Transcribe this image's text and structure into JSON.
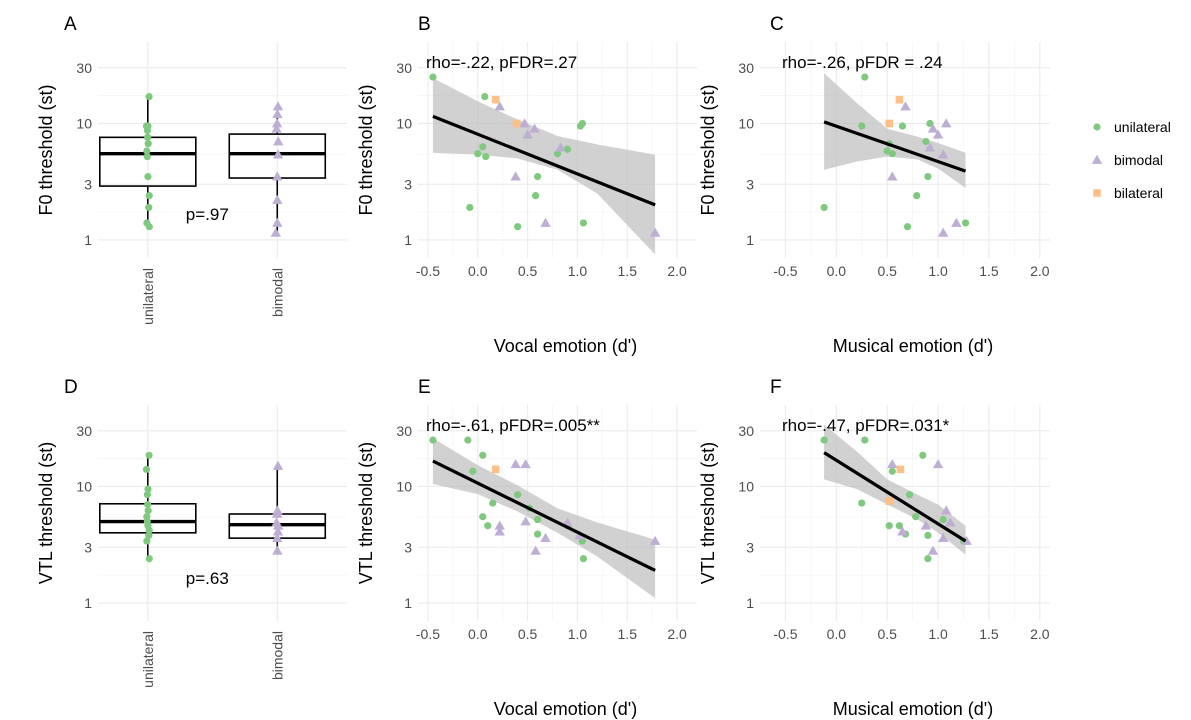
{
  "colors": {
    "unilateral": "#7fc97f",
    "bimodal": "#beaed4",
    "bilateral": "#fdc086",
    "ribbon": "#bdbdbd",
    "line": "#000000"
  },
  "legend": {
    "items": [
      {
        "label": "unilateral",
        "shape": "circle",
        "color": "#7fc97f"
      },
      {
        "label": "bimodal",
        "shape": "triangle",
        "color": "#beaed4"
      },
      {
        "label": "bilateral",
        "shape": "square",
        "color": "#fdc086"
      }
    ]
  },
  "chart_data": [
    {
      "id": "A",
      "letter": "A",
      "type": "box",
      "ylabel": "F0 threshold (st)",
      "y_scale": "log",
      "ylim": [
        0.7,
        50
      ],
      "yticks": [
        1,
        3,
        10,
        30
      ],
      "categories": [
        "unilateral",
        "bimodal"
      ],
      "boxes": [
        {
          "category": "unilateral",
          "min": 1.3,
          "q1": 2.9,
          "median": 5.5,
          "q3": 7.6,
          "max": 17
        },
        {
          "category": "bimodal",
          "min": 1.15,
          "q1": 3.4,
          "median": 5.5,
          "q3": 8.1,
          "max": 14
        }
      ],
      "points": {
        "unilateral": [
          17,
          9.5,
          9.5,
          8.7,
          7.6,
          6.7,
          5.8,
          5.2,
          3.5,
          2.4,
          1.9,
          1.4,
          1.3
        ],
        "bimodal": [
          14,
          12,
          10,
          9,
          7,
          5.4,
          3.5,
          2.2,
          1.4,
          1.15
        ]
      },
      "annotation": "p=.97"
    },
    {
      "id": "B",
      "letter": "B",
      "type": "scatter",
      "ylabel": "F0 threshold (st)",
      "xlabel": "Vocal emotion (d')",
      "y_scale": "log",
      "ylim": [
        0.7,
        50
      ],
      "yticks": [
        1,
        3,
        10,
        30
      ],
      "xlim": [
        -0.6,
        2.2
      ],
      "xticks": [
        -0.5,
        0.0,
        0.5,
        1.0,
        1.5,
        2.0
      ],
      "annotation": "rho=-.22, pFDR=.27",
      "series": [
        {
          "name": "unilateral",
          "points": [
            [
              -0.45,
              25
            ],
            [
              -0.08,
              1.9
            ],
            [
              0.0,
              5.5
            ],
            [
              0.05,
              6.3
            ],
            [
              0.07,
              17
            ],
            [
              0.08,
              5.2
            ],
            [
              0.4,
              1.3
            ],
            [
              0.58,
              2.4
            ],
            [
              0.6,
              3.5
            ],
            [
              0.8,
              5.5
            ],
            [
              0.9,
              6.0
            ],
            [
              1.03,
              9.5
            ],
            [
              1.05,
              10
            ],
            [
              1.06,
              1.4
            ]
          ]
        },
        {
          "name": "bimodal",
          "points": [
            [
              0.22,
              14
            ],
            [
              0.38,
              3.5
            ],
            [
              0.47,
              10
            ],
            [
              0.5,
              8
            ],
            [
              0.57,
              9
            ],
            [
              0.68,
              1.4
            ],
            [
              0.83,
              6.2
            ],
            [
              1.78,
              1.15
            ]
          ]
        },
        {
          "name": "bilateral",
          "points": [
            [
              0.18,
              16
            ],
            [
              0.39,
              10
            ]
          ]
        }
      ],
      "fit": {
        "x": [
          -0.45,
          1.78
        ],
        "y": [
          11.5,
          2.0
        ]
      },
      "ribbon": {
        "x": [
          -0.45,
          0.0,
          0.4,
          0.8,
          1.2,
          1.78
        ],
        "lower": [
          5.6,
          5.4,
          5.0,
          4.0,
          2.5,
          0.75
        ],
        "upper": [
          24.5,
          15.5,
          10.8,
          7.8,
          6.6,
          5.4
        ]
      }
    },
    {
      "id": "C",
      "letter": "C",
      "type": "scatter",
      "ylabel": "F0 threshold (st)",
      "xlabel": "Musical emotion (d')",
      "y_scale": "log",
      "ylim": [
        0.7,
        50
      ],
      "yticks": [
        1,
        3,
        10,
        30
      ],
      "xlim": [
        -0.75,
        2.1
      ],
      "xticks": [
        -0.5,
        0.0,
        0.5,
        1.0,
        1.5,
        2.0
      ],
      "annotation": "rho=-.26, pFDR = .24",
      "series": [
        {
          "name": "unilateral",
          "points": [
            [
              -0.12,
              1.9
            ],
            [
              0.25,
              9.5
            ],
            [
              0.28,
              25
            ],
            [
              0.5,
              5.8
            ],
            [
              0.52,
              6.7
            ],
            [
              0.55,
              5.5
            ],
            [
              0.65,
              9.5
            ],
            [
              0.7,
              1.3
            ],
            [
              0.79,
              2.4
            ],
            [
              0.88,
              7.0
            ],
            [
              0.9,
              3.5
            ],
            [
              0.92,
              10
            ],
            [
              1.27,
              1.4
            ]
          ]
        },
        {
          "name": "bimodal",
          "points": [
            [
              0.55,
              3.5
            ],
            [
              0.68,
              14
            ],
            [
              0.92,
              6.2
            ],
            [
              0.95,
              9
            ],
            [
              1.0,
              8
            ],
            [
              1.05,
              5.4
            ],
            [
              1.08,
              10
            ],
            [
              1.18,
              1.4
            ],
            [
              1.05,
              1.15
            ]
          ]
        },
        {
          "name": "bilateral",
          "points": [
            [
              0.52,
              10
            ],
            [
              0.62,
              16
            ]
          ]
        }
      ],
      "fit": {
        "x": [
          -0.12,
          1.27
        ],
        "y": [
          10.3,
          3.9
        ]
      },
      "ribbon": {
        "x": [
          -0.12,
          0.2,
          0.5,
          0.8,
          1.0,
          1.27
        ],
        "lower": [
          4.0,
          4.7,
          5.2,
          4.9,
          4.1,
          2.8
        ],
        "upper": [
          27.0,
          15.0,
          9.0,
          7.7,
          6.8,
          5.6
        ]
      }
    },
    {
      "id": "D",
      "letter": "D",
      "type": "box",
      "ylabel": "VTL threshold (st)",
      "y_scale": "log",
      "ylim": [
        0.7,
        50
      ],
      "yticks": [
        1,
        3,
        10,
        30
      ],
      "categories": [
        "unilateral",
        "bimodal"
      ],
      "boxes": [
        {
          "category": "unilateral",
          "min": 2.4,
          "q1": 4.0,
          "median": 5.0,
          "q3": 7.1,
          "max": 18.5
        },
        {
          "category": "bimodal",
          "min": 2.8,
          "q1": 3.6,
          "median": 4.7,
          "q3": 5.8,
          "max": 15
        }
      ],
      "points": {
        "unilateral": [
          18.5,
          14,
          9.5,
          8.5,
          7,
          6.2,
          5.5,
          5.0,
          4.6,
          4.2,
          3.8,
          3.4,
          2.4
        ],
        "bimodal": [
          15,
          6.2,
          5.8,
          4.9,
          4.6,
          4.1,
          3.6,
          2.8
        ]
      },
      "annotation": "p=.63"
    },
    {
      "id": "E",
      "letter": "E",
      "type": "scatter",
      "ylabel": "VTL threshold (st)",
      "xlabel": "Vocal emotion (d')",
      "y_scale": "log",
      "ylim": [
        0.7,
        50
      ],
      "yticks": [
        1,
        3,
        10,
        30
      ],
      "xlim": [
        -0.6,
        2.2
      ],
      "xticks": [
        -0.5,
        0.0,
        0.5,
        1.0,
        1.5,
        2.0
      ],
      "annotation": "rho=-.61, pFDR=.005**",
      "series": [
        {
          "name": "unilateral",
          "points": [
            [
              -0.45,
              25
            ],
            [
              -0.1,
              25
            ],
            [
              -0.05,
              13.5
            ],
            [
              0.05,
              18.5
            ],
            [
              0.05,
              5.5
            ],
            [
              0.1,
              4.6
            ],
            [
              0.15,
              7.2
            ],
            [
              0.4,
              8.5
            ],
            [
              0.52,
              6.5
            ],
            [
              0.6,
              5.2
            ],
            [
              0.6,
              3.9
            ],
            [
              0.9,
              4.6
            ],
            [
              1.05,
              3.4
            ],
            [
              1.06,
              2.4
            ]
          ]
        },
        {
          "name": "bimodal",
          "points": [
            [
              0.22,
              4.1
            ],
            [
              0.22,
              4.6
            ],
            [
              0.38,
              15.5
            ],
            [
              0.48,
              15.5
            ],
            [
              0.48,
              5.0
            ],
            [
              0.58,
              2.8
            ],
            [
              0.68,
              3.6
            ],
            [
              0.9,
              4.9
            ],
            [
              1.02,
              3.8
            ],
            [
              1.78,
              3.4
            ]
          ]
        },
        {
          "name": "bilateral",
          "points": [
            [
              0.18,
              14
            ]
          ]
        }
      ],
      "fit": {
        "x": [
          -0.45,
          1.78
        ],
        "y": [
          16.5,
          1.9
        ]
      },
      "ribbon": {
        "x": [
          -0.45,
          0.0,
          0.4,
          0.8,
          1.2,
          1.78
        ],
        "lower": [
          10.5,
          8.6,
          6.1,
          4.0,
          2.5,
          1.1
        ],
        "upper": [
          26.0,
          15.2,
          10.2,
          6.5,
          4.9,
          3.5
        ]
      }
    },
    {
      "id": "F",
      "letter": "F",
      "type": "scatter",
      "ylabel": "VTL threshold (st)",
      "xlabel": "Musical emotion (d')",
      "y_scale": "log",
      "ylim": [
        0.7,
        50
      ],
      "yticks": [
        1,
        3,
        10,
        30
      ],
      "xlim": [
        -0.75,
        2.1
      ],
      "xticks": [
        -0.5,
        0.0,
        0.5,
        1.0,
        1.5,
        2.0
      ],
      "annotation": "rho=-.47, pFDR=.031*",
      "series": [
        {
          "name": "unilateral",
          "points": [
            [
              -0.12,
              25
            ],
            [
              0.25,
              7.2
            ],
            [
              0.28,
              25
            ],
            [
              0.52,
              4.6
            ],
            [
              0.55,
              13.5
            ],
            [
              0.62,
              4.6
            ],
            [
              0.68,
              3.9
            ],
            [
              0.72,
              8.5
            ],
            [
              0.78,
              5.5
            ],
            [
              0.85,
              18.5
            ],
            [
              0.9,
              2.4
            ],
            [
              0.9,
              3.8
            ],
            [
              1.05,
              5.2
            ],
            [
              1.25,
              3.4
            ]
          ]
        },
        {
          "name": "bimodal",
          "points": [
            [
              0.55,
              15.5
            ],
            [
              0.65,
              4.1
            ],
            [
              0.88,
              4.6
            ],
            [
              0.95,
              2.8
            ],
            [
              1.0,
              15.5
            ],
            [
              1.05,
              3.6
            ],
            [
              1.08,
              6.2
            ],
            [
              1.12,
              4.9
            ],
            [
              1.28,
              3.4
            ]
          ]
        },
        {
          "name": "bilateral",
          "points": [
            [
              0.52,
              7.5
            ],
            [
              0.63,
              14
            ]
          ]
        }
      ],
      "fit": {
        "x": [
          -0.12,
          1.27
        ],
        "y": [
          19.5,
          3.4
        ]
      },
      "ribbon": {
        "x": [
          -0.12,
          0.2,
          0.5,
          0.8,
          1.0,
          1.27
        ],
        "lower": [
          11.5,
          9.5,
          7.0,
          5.2,
          4.0,
          2.6
        ],
        "upper": [
          34.0,
          20.0,
          11.5,
          8.5,
          7.0,
          4.6
        ]
      }
    }
  ]
}
